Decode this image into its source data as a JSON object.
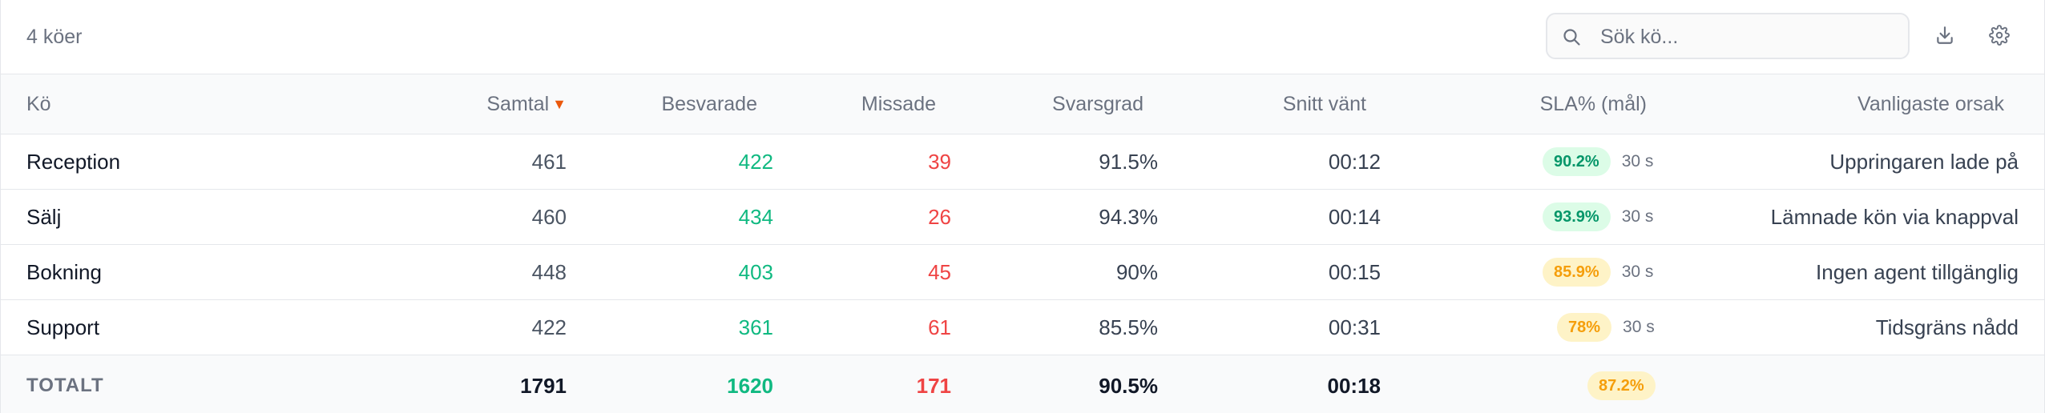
{
  "toolbar": {
    "queue_count": "4 köer",
    "search_placeholder": "Sök kö...",
    "search_value": ""
  },
  "columns": {
    "queue": "Kö",
    "calls": "Samtal",
    "calls_sort": "▼",
    "answered": "Besvarade",
    "missed": "Missade",
    "answer_rate": "Svarsgrad",
    "avg_wait": "Snitt vänt",
    "sla": "SLA% (mål)",
    "top_reason": "Vanligaste orsak"
  },
  "rows": [
    {
      "queue": "Reception",
      "calls": "461",
      "answered": "422",
      "missed": "39",
      "rate": "91.5%",
      "wait": "00:12",
      "sla": "90.2%",
      "sla_status": "good",
      "target": "30 s",
      "reason": "Uppringaren lade på"
    },
    {
      "queue": "Sälj",
      "calls": "460",
      "answered": "434",
      "missed": "26",
      "rate": "94.3%",
      "wait": "00:14",
      "sla": "93.9%",
      "sla_status": "good",
      "target": "30 s",
      "reason": "Lämnade kön via knappval"
    },
    {
      "queue": "Bokning",
      "calls": "448",
      "answered": "403",
      "missed": "45",
      "rate": "90%",
      "wait": "00:15",
      "sla": "85.9%",
      "sla_status": "warn",
      "target": "30 s",
      "reason": "Ingen agent tillgänglig"
    },
    {
      "queue": "Support",
      "calls": "422",
      "answered": "361",
      "missed": "61",
      "rate": "85.5%",
      "wait": "00:31",
      "sla": "78%",
      "sla_status": "warn",
      "target": "30 s",
      "reason": "Tidsgräns nådd"
    }
  ],
  "total": {
    "label": "TOTALT",
    "calls": "1791",
    "answered": "1620",
    "missed": "171",
    "rate": "90.5%",
    "wait": "00:18",
    "sla": "87.2%",
    "sla_status": "warn"
  },
  "colors": {
    "answered": "#10b981",
    "missed": "#ef4444",
    "sort_arrow": "#ea580c",
    "sla_good_bg": "#dcfce7",
    "sla_good_fg": "#059669",
    "sla_warn_bg": "#fef3c7",
    "sla_warn_fg": "#f59e0b"
  },
  "icons": {
    "search": "search-icon",
    "download": "download-icon",
    "settings": "gear-icon"
  }
}
